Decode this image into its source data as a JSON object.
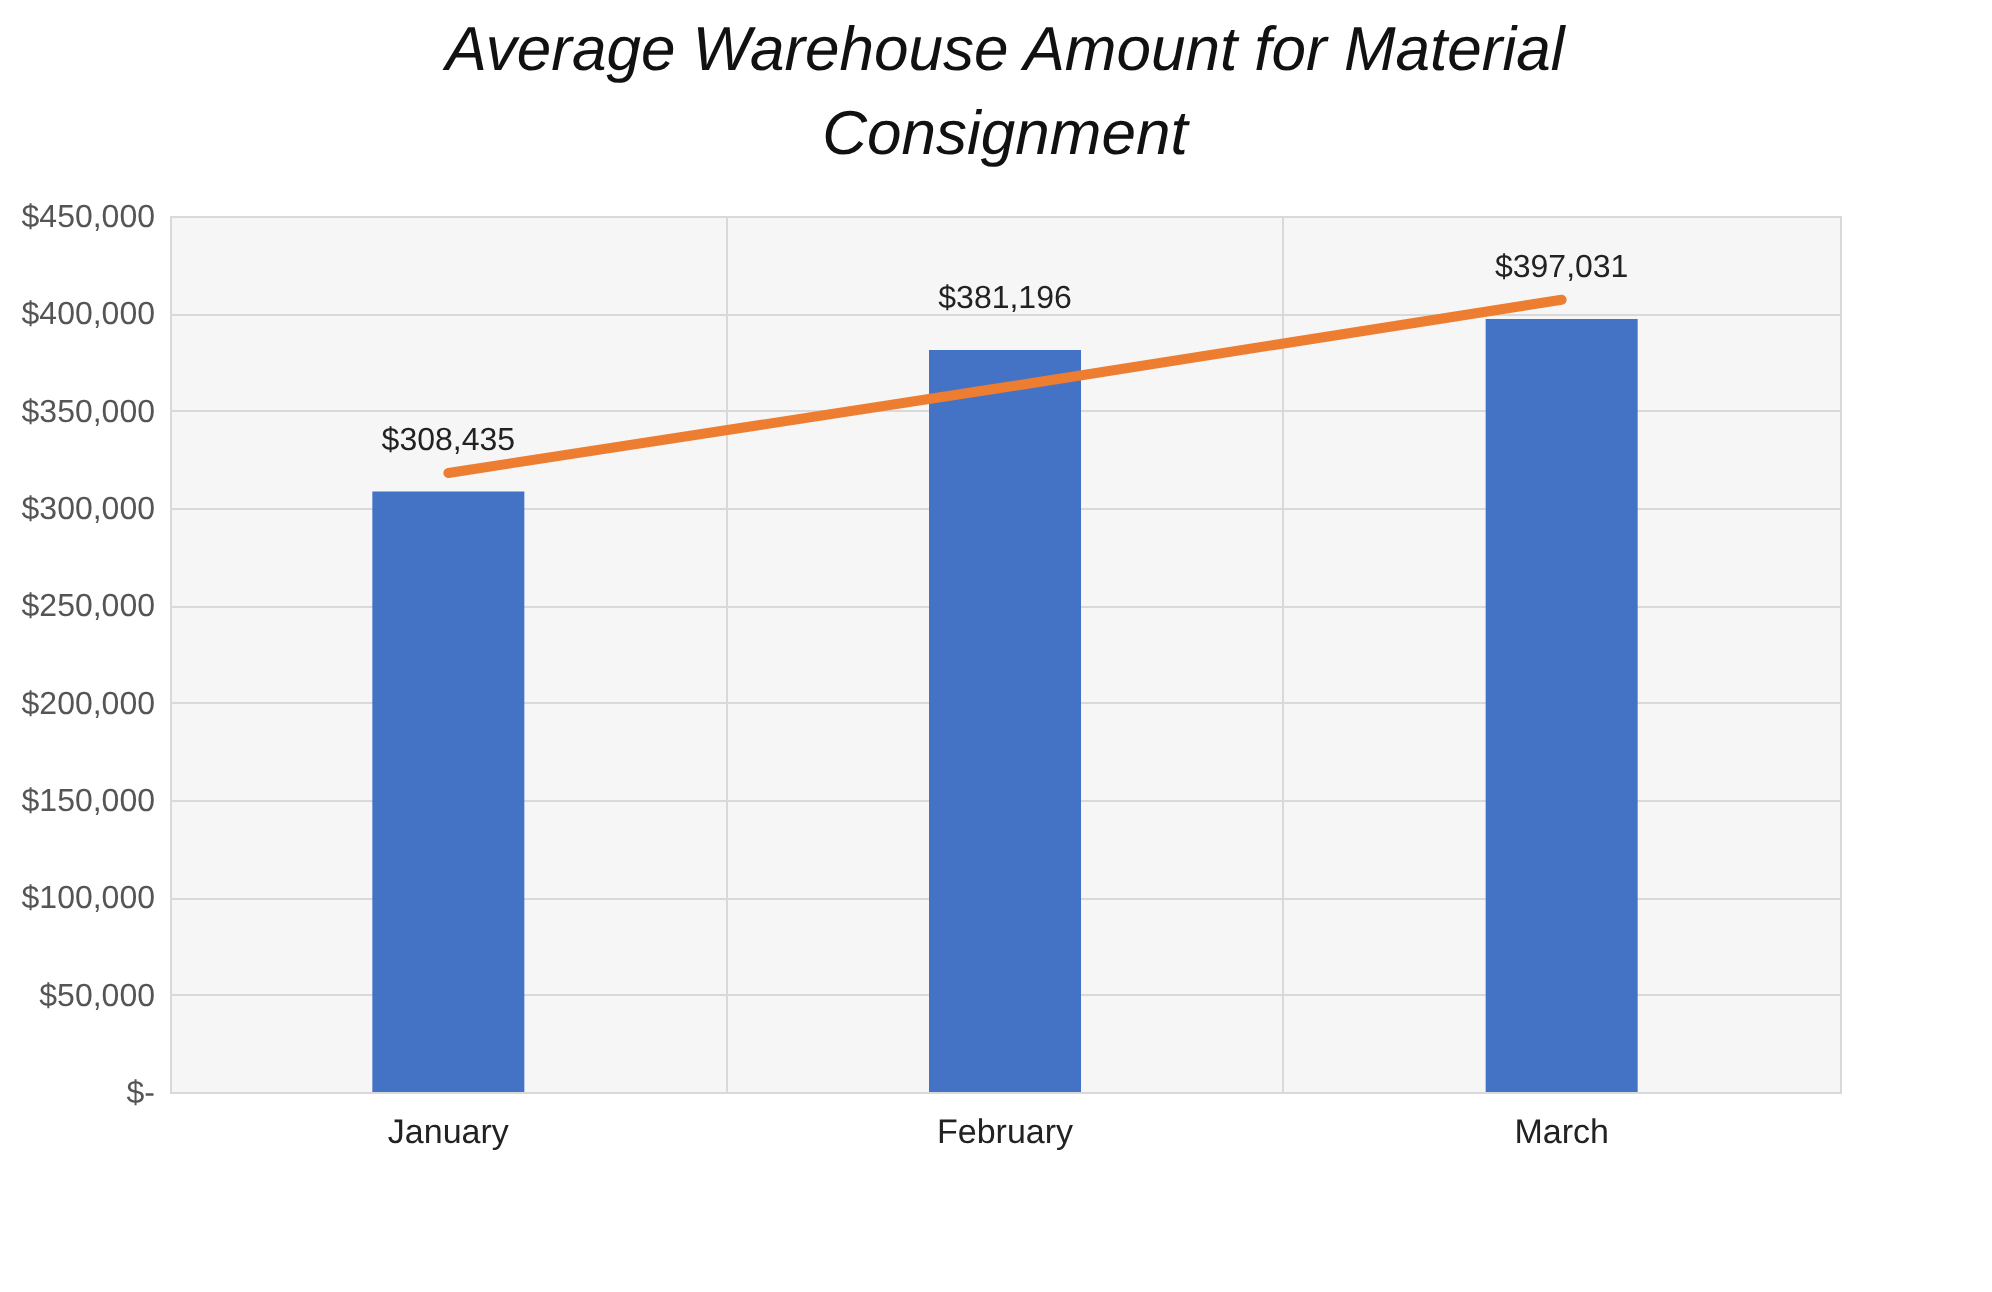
{
  "chart_data": {
    "type": "bar",
    "title": "Average Warehouse Amount for Material Consignment",
    "categories": [
      "January",
      "February",
      "March"
    ],
    "series": [
      {
        "color": "#4472c4",
        "values": [
          308435,
          381196,
          397031
        ],
        "value_labels": [
          "$308,435",
          "$381,196",
          "$397,031"
        ]
      },
      {
        "type": "line",
        "color": "#ed7d31",
        "values": [
          318000,
          362000,
          407000
        ]
      }
    ],
    "ylim": [
      0,
      450000
    ],
    "yticks": [
      {
        "value": 0,
        "label": "$-"
      },
      {
        "value": 50000,
        "label": "$50,000"
      },
      {
        "value": 100000,
        "label": "$100,000"
      },
      {
        "value": 150000,
        "label": "$150,000"
      },
      {
        "value": 200000,
        "label": "$200,000"
      },
      {
        "value": 250000,
        "label": "$250,000"
      },
      {
        "value": 300000,
        "label": "$300,000"
      },
      {
        "value": 350000,
        "label": "$350,000"
      },
      {
        "value": 400000,
        "label": "$400,000"
      },
      {
        "value": 450000,
        "label": "$450,000"
      }
    ],
    "grid": true
  }
}
